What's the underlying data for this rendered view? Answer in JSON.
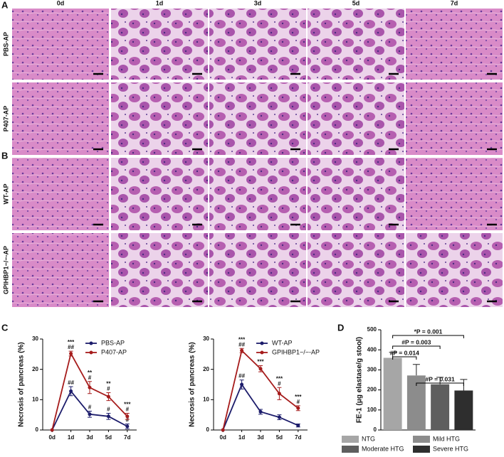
{
  "figure": {
    "panel_labels": [
      "A",
      "B",
      "C",
      "D"
    ],
    "histology": {
      "columns": [
        "0d",
        "1d",
        "3d",
        "5d",
        "7d"
      ],
      "rows": [
        "PBS-AP",
        "P407-AP",
        "WT-AP",
        "GPIHBP1−/−-AP"
      ]
    }
  },
  "chart_data": [
    {
      "type": "line",
      "categories": [
        "0d",
        "1d",
        "3d",
        "5d",
        "7d"
      ],
      "ylabel": "Necrosis of pancreas (%)",
      "ylim": [
        0,
        30
      ],
      "yticks": [
        0,
        10,
        20,
        30
      ],
      "legend": "upper right",
      "series": [
        {
          "name": "PBS-AP",
          "color": "#1c1c6b",
          "values": [
            0,
            12.8,
            5.2,
            4.5,
            1.2
          ],
          "errors": [
            0,
            1.5,
            1,
            1,
            0.8
          ],
          "annotations": [
            null,
            [
              "##"
            ],
            [
              "#"
            ],
            [
              "#"
            ],
            [
              "#"
            ]
          ]
        },
        {
          "name": "P407-AP",
          "color": "#a61c1c",
          "values": [
            0,
            25.2,
            14,
            11,
            4.5
          ],
          "errors": [
            0,
            0.8,
            2,
            1.3,
            1
          ],
          "annotations": [
            null,
            [
              "***",
              "##"
            ],
            [
              "**",
              "#"
            ],
            [
              "**",
              "#"
            ],
            [
              "***",
              "#"
            ]
          ]
        }
      ]
    },
    {
      "type": "line",
      "categories": [
        "0d",
        "1d",
        "3d",
        "5d",
        "7d"
      ],
      "ylabel": "Necrosis of pancreas (%)",
      "ylim": [
        0,
        30
      ],
      "yticks": [
        0,
        10,
        20,
        30
      ],
      "legend": "upper right",
      "series": [
        {
          "name": "WT-AP",
          "color": "#1c1c6b",
          "values": [
            0,
            15,
            6,
            4.2,
            1.5
          ],
          "errors": [
            0,
            1.5,
            0.8,
            0.8,
            0.5
          ],
          "annotations": [
            null,
            [
              "##"
            ],
            null,
            null,
            null
          ]
        },
        {
          "name": "GPIHBP1−/−-AP",
          "color": "#a61c1c",
          "values": [
            0,
            26.2,
            20.2,
            12,
            7.2
          ],
          "errors": [
            0,
            0.7,
            1,
            2,
            0.8
          ],
          "annotations": [
            null,
            [
              "***",
              "##"
            ],
            [
              "***"
            ],
            [
              "***",
              "#"
            ],
            [
              "***",
              "#"
            ]
          ]
        }
      ]
    },
    {
      "type": "bar",
      "categories": [
        "NTG",
        "Mild HTG",
        "Moderate HTG",
        "Severe HTG"
      ],
      "colors": [
        "#a6a6a6",
        "#8c8c8c",
        "#5e5e5e",
        "#2e2e2e"
      ],
      "values": [
        360,
        272,
        228,
        197
      ],
      "errors": [
        28,
        55,
        35,
        55
      ],
      "ylabel": "FE-1 (μg elastase/g stool)",
      "ylim": [
        0,
        500
      ],
      "yticks": [
        0,
        100,
        200,
        300,
        400,
        500
      ],
      "comparisons": [
        {
          "label": "*P = 0.001",
          "groups": [
            "NTG",
            "Severe HTG"
          ]
        },
        {
          "label": "#P = 0.003",
          "groups": [
            "NTG",
            "Moderate HTG"
          ]
        },
        {
          "label": "#P = 0.014",
          "groups": [
            "NTG",
            "Mild HTG"
          ]
        },
        {
          "label": "#P = 0.031",
          "groups": [
            "Mild HTG",
            "Severe HTG"
          ]
        }
      ]
    }
  ]
}
